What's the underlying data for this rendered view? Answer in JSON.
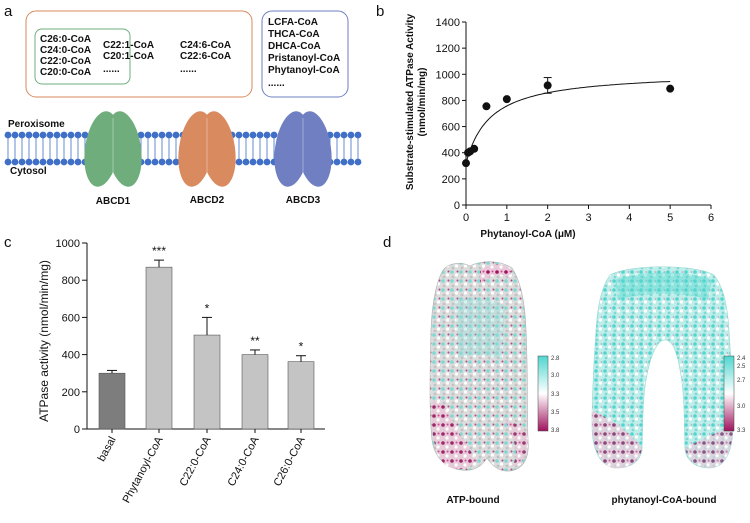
{
  "panel_labels": {
    "a": "a",
    "b": "b",
    "c": "c",
    "d": "d"
  },
  "panel_a": {
    "box1": {
      "left_column": [
        "C26:0-CoA",
        "C24:0-CoA",
        "C22:0-CoA",
        "C20:0-CoA"
      ],
      "middle_column": [
        "C22:1-CoA",
        "C20:1-CoA",
        "......"
      ],
      "right_column": [
        "C24:6-CoA",
        "C22:6-CoA",
        "......"
      ]
    },
    "box2": [
      "LCFA-CoA",
      "THCA-CoA",
      "DHCA-CoA",
      "Pristanoyl-CoA",
      "Phytanoyl-CoA",
      "......"
    ],
    "peroxisome_label": "Peroxisome",
    "cytosol_label": "Cytosol",
    "proteins": [
      {
        "name": "ABCD1",
        "color": "#6fae7c"
      },
      {
        "name": "ABCD2",
        "color": "#d98a5e"
      },
      {
        "name": "ABCD3",
        "color": "#6f7fc2"
      }
    ],
    "box1_border_color": "#d98a5e",
    "box1_inner_border_color": "#6fae7c",
    "box2_border_color": "#6f7fc2",
    "membrane_color": "#3f6fc6"
  },
  "chart_data": [
    {
      "panel": "b",
      "type": "scatter",
      "xlabel": "Phytanoyl-CoA (μM)",
      "ylabel": "Substrate-stimulated ATPase Activity (nmol/min/mg)",
      "ylabel_lines": [
        "Substrate-stimulated ATPase Activity",
        "(nmol/min/mg)"
      ],
      "xlim": [
        0,
        6
      ],
      "ylim": [
        0,
        1400
      ],
      "xticks": [
        0,
        1,
        2,
        3,
        4,
        5,
        6
      ],
      "yticks": [
        0,
        200,
        400,
        600,
        800,
        1000,
        1200,
        1400
      ],
      "points": [
        {
          "x": 0,
          "y": 320,
          "err": 15
        },
        {
          "x": 0.05,
          "y": 400,
          "err": 10
        },
        {
          "x": 0.1,
          "y": 410,
          "err": 10
        },
        {
          "x": 0.2,
          "y": 430,
          "err": 10
        },
        {
          "x": 0.5,
          "y": 755,
          "err": 10
        },
        {
          "x": 1,
          "y": 810,
          "err": 10
        },
        {
          "x": 2,
          "y": 915,
          "err": 60
        },
        {
          "x": 5,
          "y": 890,
          "err": 10
        }
      ],
      "fit_curve": {
        "model": "Michaelis-Menten",
        "baseline": 320,
        "vmax": 700,
        "km": 0.6
      },
      "grid": false,
      "legend": "none"
    },
    {
      "panel": "c",
      "type": "bar",
      "ylabel": "ATPase activity (nmol/min/mg)",
      "categories": [
        "basal",
        "Phytanoyl-CoA",
        "C22:0-CoA",
        "C24:0-CoA",
        "C26:0-CoA"
      ],
      "values": [
        300,
        870,
        505,
        400,
        362
      ],
      "errors": [
        15,
        38,
        95,
        25,
        32
      ],
      "significance": [
        "",
        "***",
        "*",
        "**",
        "*"
      ],
      "bar_colors": [
        "#7d7d7d",
        "#c4c4c4",
        "#c4c4c4",
        "#c4c4c4",
        "#c4c4c4"
      ],
      "ylim": [
        0,
        1000
      ],
      "yticks": [
        0,
        200,
        400,
        600,
        800,
        1000
      ],
      "grid": false,
      "legend": "none"
    }
  ],
  "panel_d": {
    "maps": [
      {
        "caption": "ATP-bound",
        "colorbar_ticks": [
          "2.8",
          "3.0",
          "3.3",
          "3.5",
          "3.8"
        ]
      },
      {
        "caption": "phytanoyl-CoA-bound",
        "colorbar_ticks": [
          "2.4",
          "2.5",
          "2.7",
          "3.0",
          "3.3"
        ]
      }
    ],
    "colorbar_colors": [
      "#4fd6cf",
      "#ffffff",
      "#a0135e"
    ]
  }
}
